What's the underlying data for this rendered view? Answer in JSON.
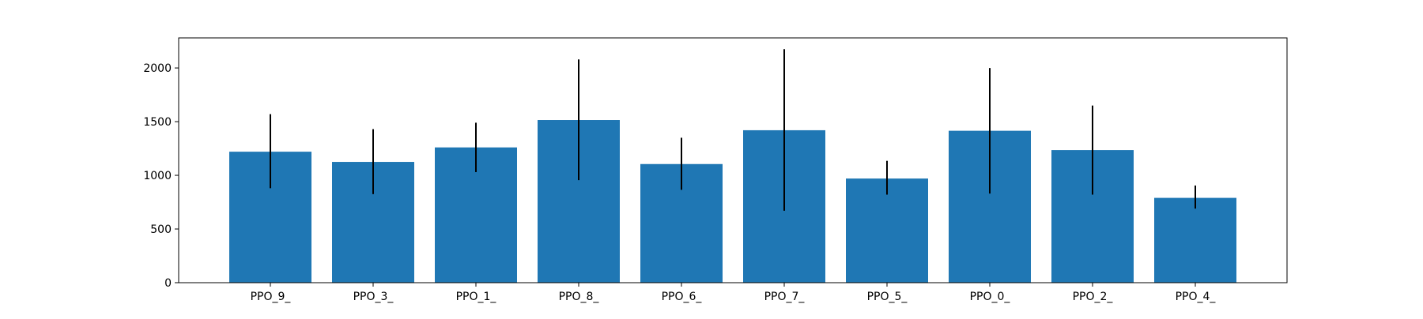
{
  "chart_data": {
    "type": "bar",
    "title": "",
    "xlabel": "",
    "ylabel": "",
    "categories": [
      "PPO_9_",
      "PPO_3_",
      "PPO_1_",
      "PPO_8_",
      "PPO_6_",
      "PPO_7_",
      "PPO_5_",
      "PPO_0_",
      "PPO_2_",
      "PPO_4_"
    ],
    "values": [
      1220,
      1125,
      1260,
      1515,
      1105,
      1420,
      970,
      1415,
      1235,
      790
    ],
    "error_low": [
      880,
      825,
      1030,
      955,
      865,
      670,
      820,
      830,
      820,
      690
    ],
    "error_high": [
      1570,
      1430,
      1490,
      2080,
      1350,
      2175,
      1135,
      2000,
      1650,
      905
    ],
    "ylim": [
      0,
      2280
    ],
    "yticks": [
      0,
      500,
      1000,
      1500,
      2000
    ],
    "grid": false,
    "bar_color": "#1f77b4",
    "error_color": "#000000"
  }
}
